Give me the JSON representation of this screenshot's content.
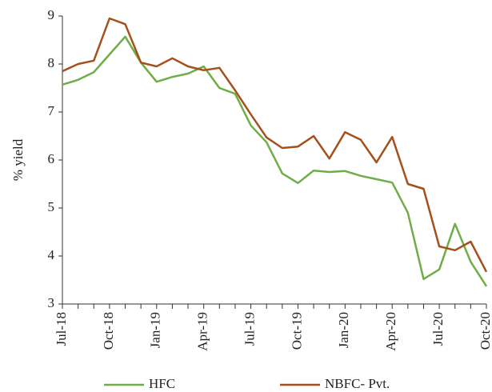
{
  "chart_data": {
    "type": "line",
    "ylabel": "% yield",
    "categories": [
      "Jul-18",
      null,
      null,
      "Oct-18",
      null,
      null,
      "Jan-19",
      null,
      null,
      "Apr-19",
      null,
      null,
      "Jul-19",
      null,
      null,
      "Oct-19",
      null,
      null,
      "Jan-20",
      null,
      null,
      "Apr-20",
      null,
      null,
      "Jul-20",
      null,
      null,
      "Oct-20"
    ],
    "series": [
      {
        "name": "HFC",
        "color": "#70ad47",
        "values": [
          7.57,
          7.67,
          7.83,
          8.2,
          8.57,
          8.03,
          7.63,
          7.73,
          7.8,
          7.95,
          7.5,
          7.38,
          6.72,
          6.37,
          5.72,
          5.52,
          5.78,
          5.75,
          5.77,
          5.67,
          5.6,
          5.53,
          4.9,
          3.52,
          3.72,
          4.67,
          3.88,
          3.37
        ]
      },
      {
        "name": "NBFC- Pvt.",
        "color": "#a5501c",
        "values": [
          7.85,
          8.0,
          8.07,
          8.95,
          8.83,
          8.03,
          7.95,
          8.12,
          7.95,
          7.87,
          7.92,
          7.45,
          6.95,
          6.47,
          6.25,
          6.28,
          6.5,
          6.03,
          6.58,
          6.42,
          5.95,
          6.48,
          5.5,
          5.4,
          4.2,
          4.12,
          4.3,
          3.67
        ]
      }
    ],
    "ylim": [
      3,
      9
    ],
    "yticks": [
      3,
      4,
      5,
      6,
      7,
      8,
      9
    ],
    "grid": false,
    "legend": "bottom"
  }
}
